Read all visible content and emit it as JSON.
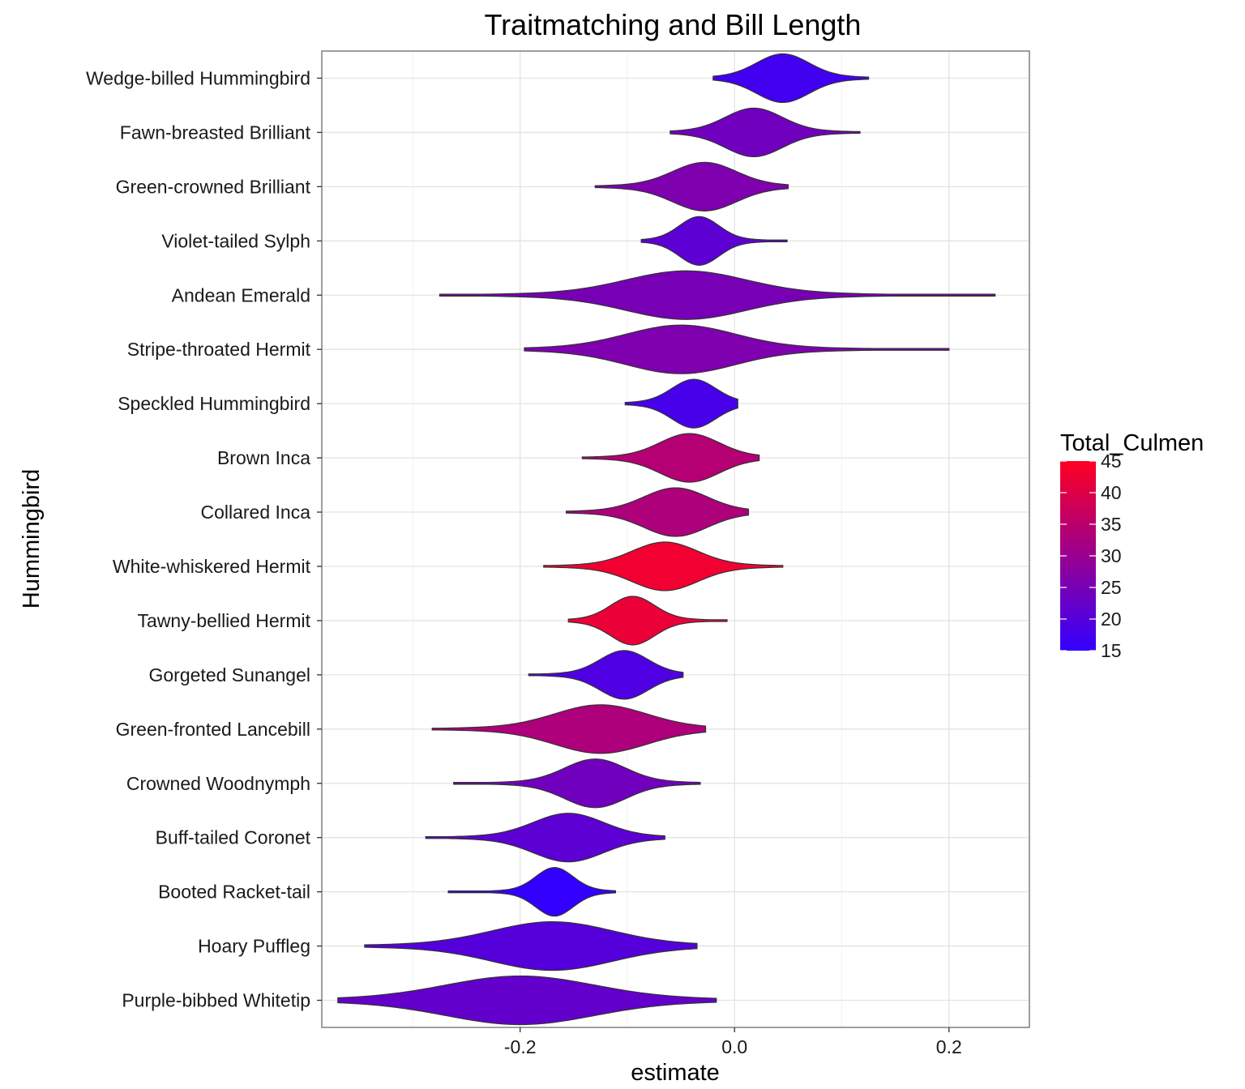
{
  "chart_data": {
    "type": "violin",
    "title": "Traitmatching and Bill Length",
    "xlabel": "estimate",
    "ylabel": "Hummingbird",
    "xlim": [
      -0.385,
      0.275
    ],
    "x_ticks": [
      -0.2,
      0.0,
      0.2
    ],
    "x_tick_labels": [
      "-0.2",
      "0.0",
      "0.2"
    ],
    "grid": true,
    "legend": {
      "title": "Total_Culmen",
      "placement": "right",
      "range": [
        15,
        45
      ],
      "ticks": [
        "45",
        "40",
        "35",
        "30",
        "25",
        "20",
        "15"
      ],
      "color_low": "#3300ff",
      "color_high": "#ff0022"
    },
    "series": [
      {
        "name": "Wedge-billed Hummingbird",
        "culmen": 17,
        "center": 0.045,
        "spread": 0.024,
        "min": -0.02,
        "max": 0.125
      },
      {
        "name": "Fawn-breasted Brilliant",
        "culmen": 24,
        "center": 0.018,
        "spread": 0.026,
        "min": -0.06,
        "max": 0.117
      },
      {
        "name": "Green-crowned Brilliant",
        "culmen": 26,
        "center": -0.028,
        "spread": 0.029,
        "min": -0.13,
        "max": 0.05
      },
      {
        "name": "Violet-tailed Sylph",
        "culmen": 21,
        "center": -0.033,
        "spread": 0.018,
        "min": -0.087,
        "max": 0.049
      },
      {
        "name": "Andean Emerald",
        "culmen": 25,
        "center": -0.045,
        "spread": 0.055,
        "min": -0.275,
        "max": 0.243
      },
      {
        "name": "Stripe-throated Hermit",
        "culmen": 26,
        "center": -0.05,
        "spread": 0.05,
        "min": -0.196,
        "max": 0.2
      },
      {
        "name": "Speckled Hummingbird",
        "culmen": 18,
        "center": -0.038,
        "spread": 0.02,
        "min": -0.102,
        "max": 0.003
      },
      {
        "name": "Brown Inca",
        "culmen": 34,
        "center": -0.042,
        "spread": 0.027,
        "min": -0.142,
        "max": 0.023
      },
      {
        "name": "Collared Inca",
        "culmen": 33,
        "center": -0.055,
        "spread": 0.029,
        "min": -0.157,
        "max": 0.013
      },
      {
        "name": "White-whiskered Hermit",
        "culmen": 43,
        "center": -0.065,
        "spread": 0.03,
        "min": -0.178,
        "max": 0.045
      },
      {
        "name": "Tawny-bellied Hermit",
        "culmen": 42,
        "center": -0.095,
        "spread": 0.02,
        "min": -0.155,
        "max": -0.007
      },
      {
        "name": "Gorgeted Sunangel",
        "culmen": 19,
        "center": -0.103,
        "spread": 0.022,
        "min": -0.192,
        "max": -0.048
      },
      {
        "name": "Green-fronted Lancebill",
        "culmen": 33,
        "center": -0.125,
        "spread": 0.042,
        "min": -0.282,
        "max": -0.027
      },
      {
        "name": "Crowned Woodnymph",
        "culmen": 24,
        "center": -0.13,
        "spread": 0.028,
        "min": -0.262,
        "max": -0.032
      },
      {
        "name": "Buff-tailed Coronet",
        "culmen": 21,
        "center": -0.155,
        "spread": 0.032,
        "min": -0.288,
        "max": -0.065
      },
      {
        "name": "Booted Racket-tail",
        "culmen": 15,
        "center": -0.168,
        "spread": 0.017,
        "min": -0.267,
        "max": -0.111
      },
      {
        "name": "Hoary Puffleg",
        "culmen": 20,
        "center": -0.17,
        "spread": 0.055,
        "min": -0.345,
        "max": -0.035
      },
      {
        "name": "Purple-bibbed Whitetip",
        "culmen": 22,
        "center": -0.2,
        "spread": 0.068,
        "min": -0.37,
        "max": -0.017
      }
    ]
  }
}
